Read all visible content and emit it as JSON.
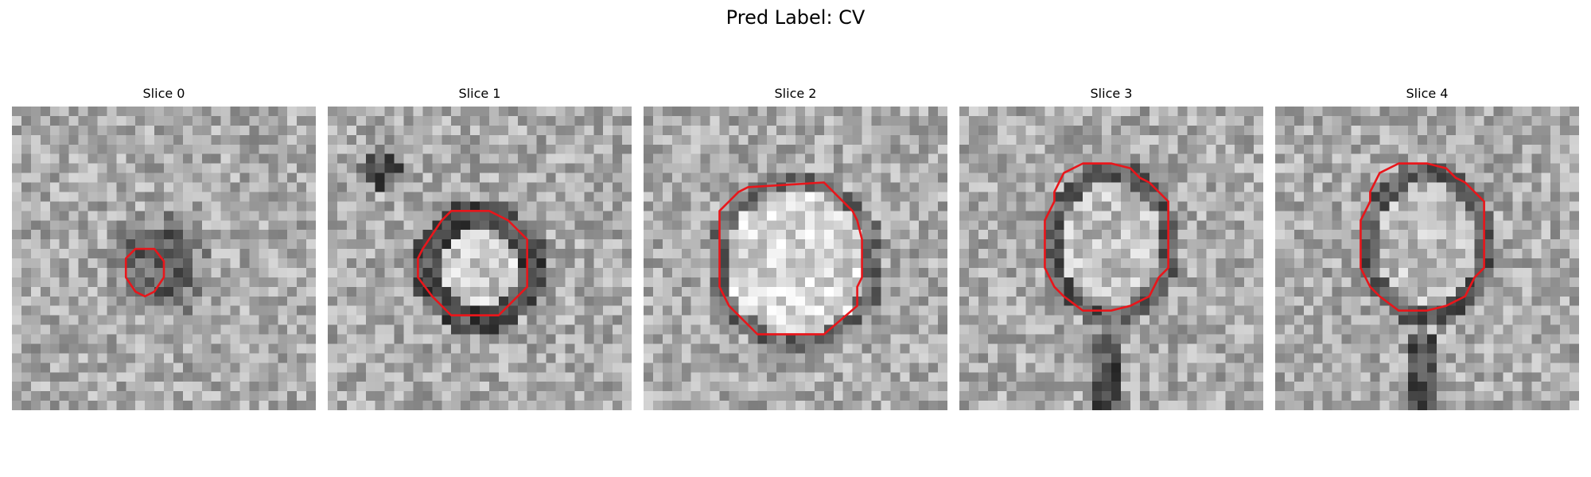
{
  "figure": {
    "title": "Pred Label: CV"
  },
  "panels": [
    {
      "title": "Slice 0",
      "seed": 11,
      "lesion": "small"
    },
    {
      "title": "Slice 1",
      "seed": 23,
      "lesion": "ring"
    },
    {
      "title": "Slice 2",
      "seed": 37,
      "lesion": "bright"
    },
    {
      "title": "Slice 3",
      "seed": 41,
      "lesion": "oval"
    },
    {
      "title": "Slice 4",
      "seed": 53,
      "lesion": "oval"
    }
  ],
  "colors": {
    "contour": "#e8161b",
    "background": "#ffffff"
  }
}
